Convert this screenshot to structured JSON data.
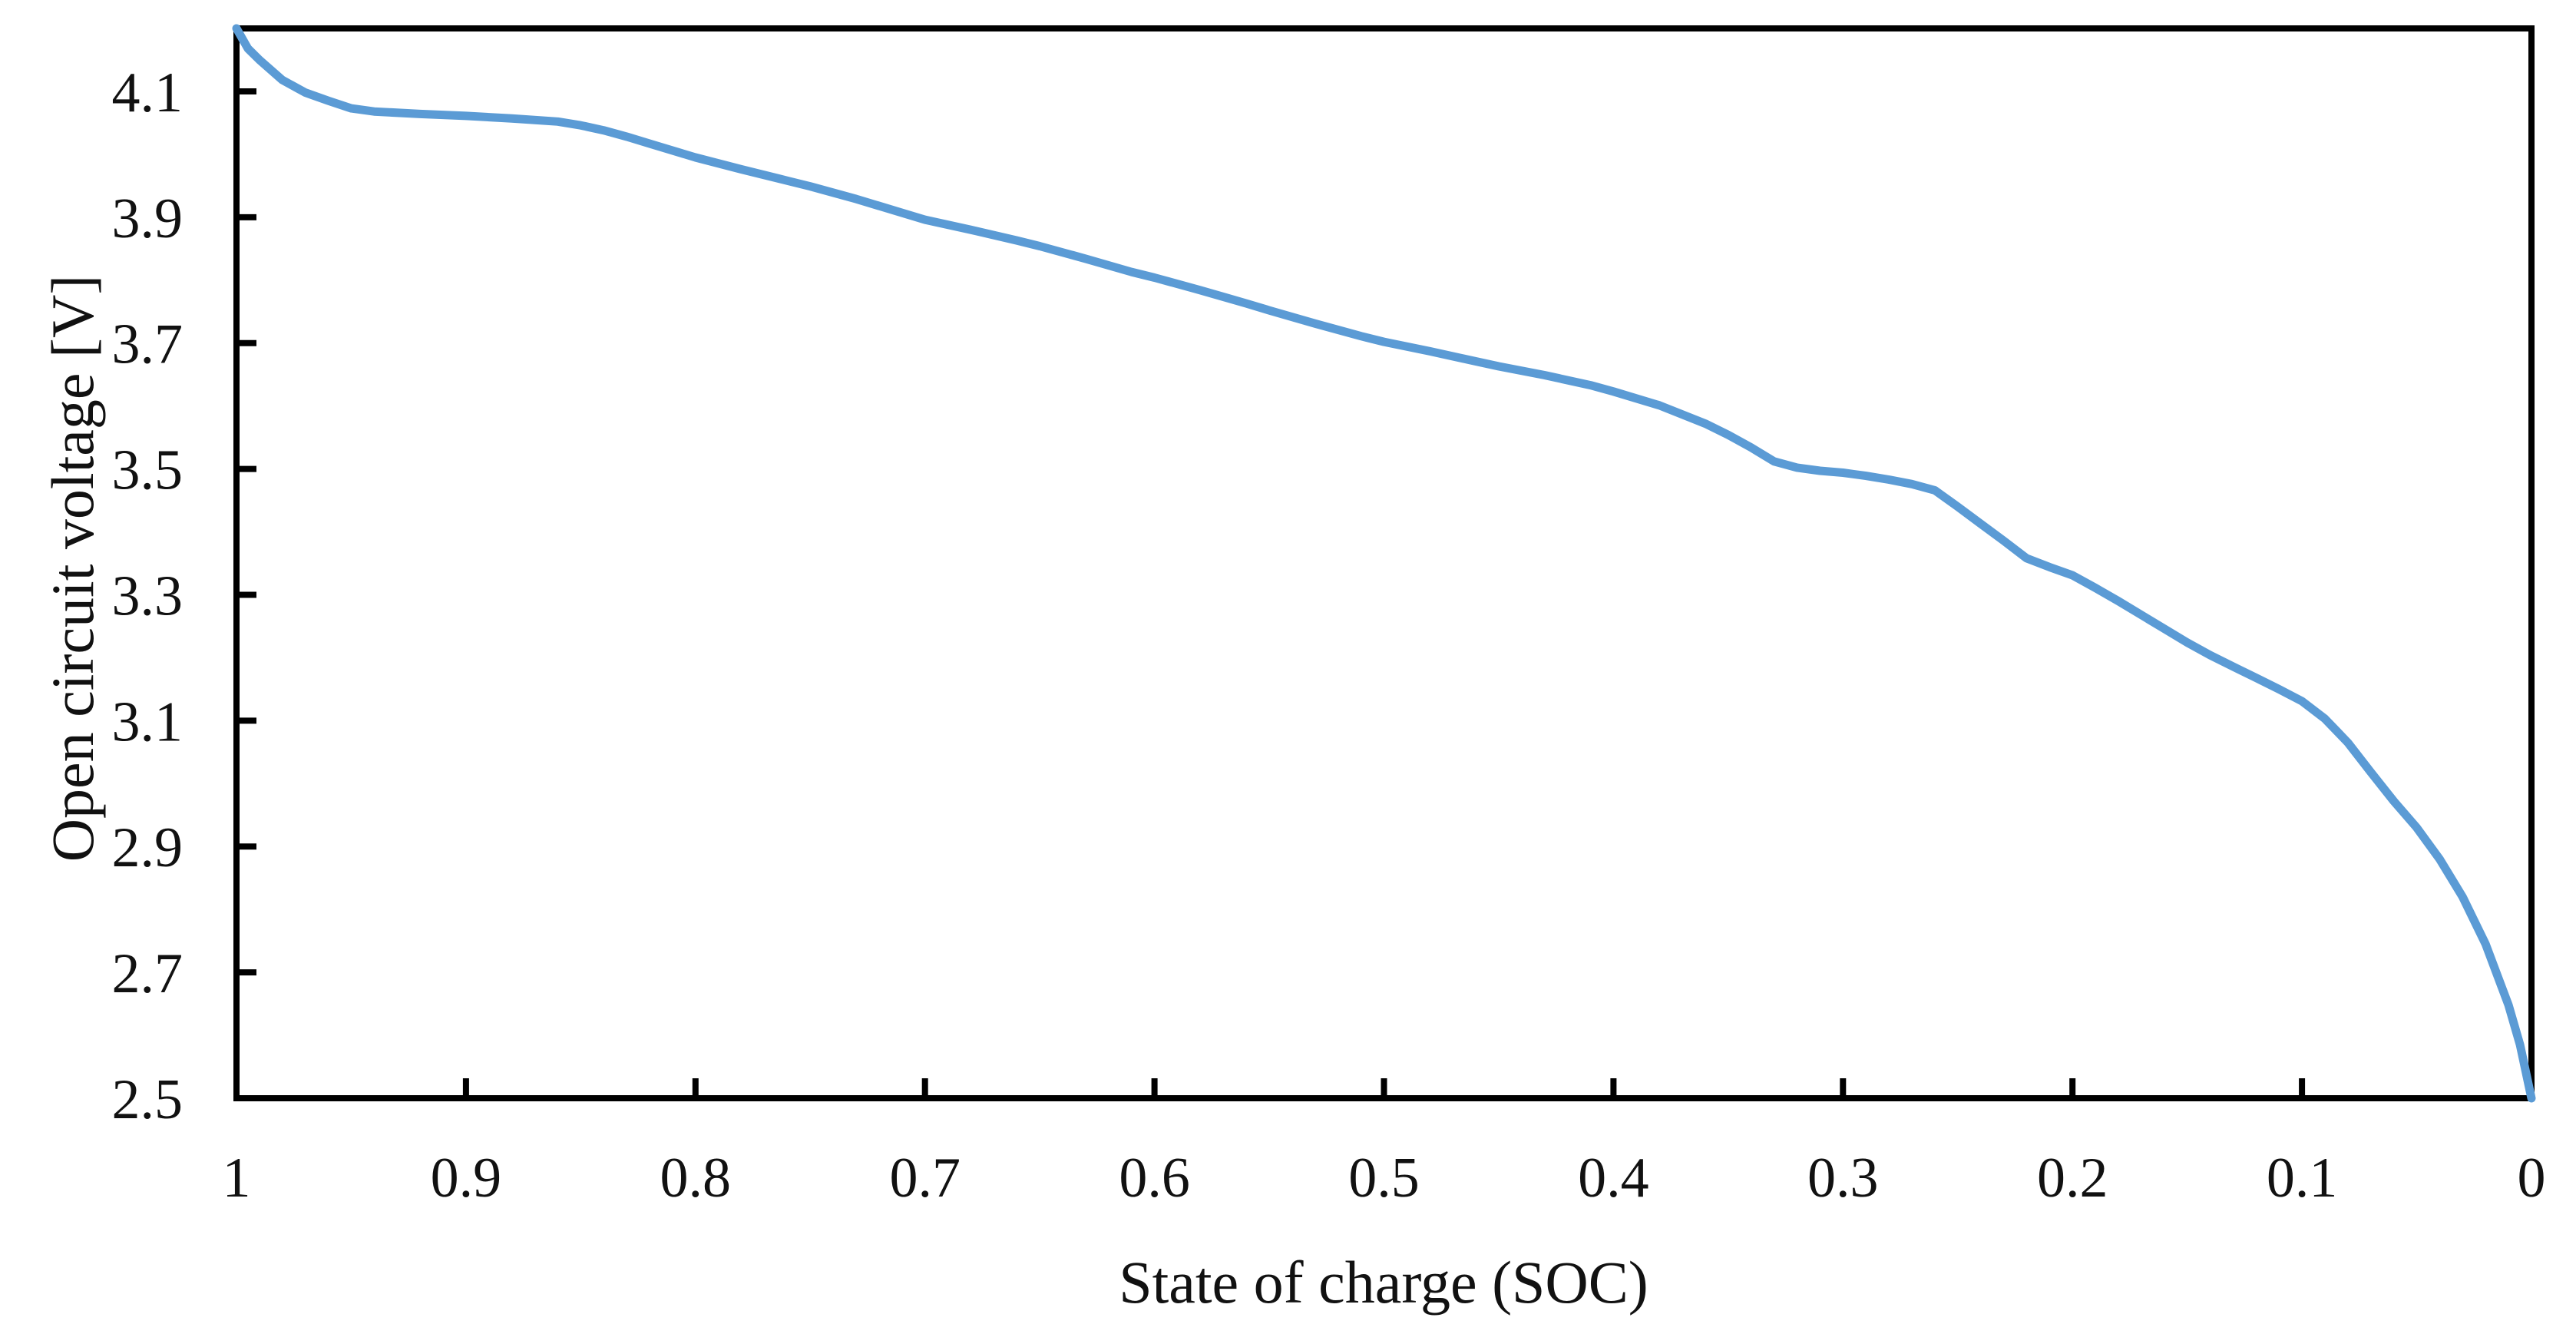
{
  "chart_data": {
    "type": "line",
    "title": "",
    "xlabel": "State of charge (SOC)",
    "ylabel": "Open circuit voltage [V]",
    "grid": false,
    "legend": false,
    "x_axis": {
      "min": 0,
      "max": 1,
      "reversed": true,
      "tick_values": [
        1,
        0.9,
        0.8,
        0.7,
        0.6,
        0.5,
        0.4,
        0.3,
        0.2,
        0.1,
        0
      ],
      "tick_labels": [
        "1",
        "0.9",
        "0.8",
        "0.7",
        "0.6",
        "0.5",
        "0.4",
        "0.3",
        "0.2",
        "0.1",
        "0"
      ]
    },
    "y_axis": {
      "min": 2.5,
      "max": 4.2,
      "tick_values": [
        4.1,
        3.9,
        3.7,
        3.5,
        3.3,
        3.1,
        2.9,
        2.7,
        2.5
      ],
      "tick_labels": [
        "4.1",
        "3.9",
        "3.7",
        "3.5",
        "3.3",
        "3.1",
        "2.9",
        "2.7",
        "2.5"
      ]
    },
    "series": [
      {
        "name": "Open circuit voltage vs SOC",
        "color": "#5B9BD5",
        "points": [
          [
            1.0,
            4.2
          ],
          [
            0.995,
            4.168
          ],
          [
            0.99,
            4.15
          ],
          [
            0.98,
            4.118
          ],
          [
            0.97,
            4.098
          ],
          [
            0.96,
            4.085
          ],
          [
            0.95,
            4.073
          ],
          [
            0.94,
            4.068
          ],
          [
            0.92,
            4.064
          ],
          [
            0.9,
            4.061
          ],
          [
            0.88,
            4.057
          ],
          [
            0.86,
            4.052
          ],
          [
            0.85,
            4.046
          ],
          [
            0.84,
            4.038
          ],
          [
            0.83,
            4.028
          ],
          [
            0.82,
            4.017
          ],
          [
            0.81,
            4.006
          ],
          [
            0.8,
            3.995
          ],
          [
            0.78,
            3.976
          ],
          [
            0.76,
            3.958
          ],
          [
            0.75,
            3.949
          ],
          [
            0.73,
            3.929
          ],
          [
            0.71,
            3.907
          ],
          [
            0.7,
            3.896
          ],
          [
            0.68,
            3.88
          ],
          [
            0.66,
            3.863
          ],
          [
            0.65,
            3.854
          ],
          [
            0.63,
            3.834
          ],
          [
            0.61,
            3.813
          ],
          [
            0.6,
            3.804
          ],
          [
            0.58,
            3.784
          ],
          [
            0.56,
            3.763
          ],
          [
            0.55,
            3.752
          ],
          [
            0.53,
            3.731
          ],
          [
            0.51,
            3.711
          ],
          [
            0.5,
            3.702
          ],
          [
            0.48,
            3.687
          ],
          [
            0.46,
            3.671
          ],
          [
            0.45,
            3.663
          ],
          [
            0.43,
            3.649
          ],
          [
            0.41,
            3.633
          ],
          [
            0.4,
            3.623
          ],
          [
            0.38,
            3.601
          ],
          [
            0.36,
            3.572
          ],
          [
            0.35,
            3.554
          ],
          [
            0.34,
            3.534
          ],
          [
            0.33,
            3.512
          ],
          [
            0.32,
            3.502
          ],
          [
            0.31,
            3.497
          ],
          [
            0.3,
            3.494
          ],
          [
            0.29,
            3.489
          ],
          [
            0.28,
            3.483
          ],
          [
            0.27,
            3.476
          ],
          [
            0.26,
            3.466
          ],
          [
            0.25,
            3.44
          ],
          [
            0.24,
            3.413
          ],
          [
            0.23,
            3.386
          ],
          [
            0.22,
            3.358
          ],
          [
            0.21,
            3.344
          ],
          [
            0.2,
            3.331
          ],
          [
            0.19,
            3.311
          ],
          [
            0.18,
            3.29
          ],
          [
            0.17,
            3.268
          ],
          [
            0.16,
            3.246
          ],
          [
            0.15,
            3.224
          ],
          [
            0.14,
            3.204
          ],
          [
            0.13,
            3.186
          ],
          [
            0.12,
            3.168
          ],
          [
            0.11,
            3.15
          ],
          [
            0.1,
            3.131
          ],
          [
            0.09,
            3.103
          ],
          [
            0.08,
            3.065
          ],
          [
            0.07,
            3.018
          ],
          [
            0.06,
            2.972
          ],
          [
            0.05,
            2.93
          ],
          [
            0.04,
            2.88
          ],
          [
            0.03,
            2.82
          ],
          [
            0.02,
            2.745
          ],
          [
            0.01,
            2.648
          ],
          [
            0.005,
            2.585
          ],
          [
            0.0,
            2.5
          ]
        ]
      }
    ]
  },
  "colors": {
    "background": "#ffffff",
    "axis": "#000000",
    "text": "#111111",
    "line": "#5B9BD5"
  }
}
